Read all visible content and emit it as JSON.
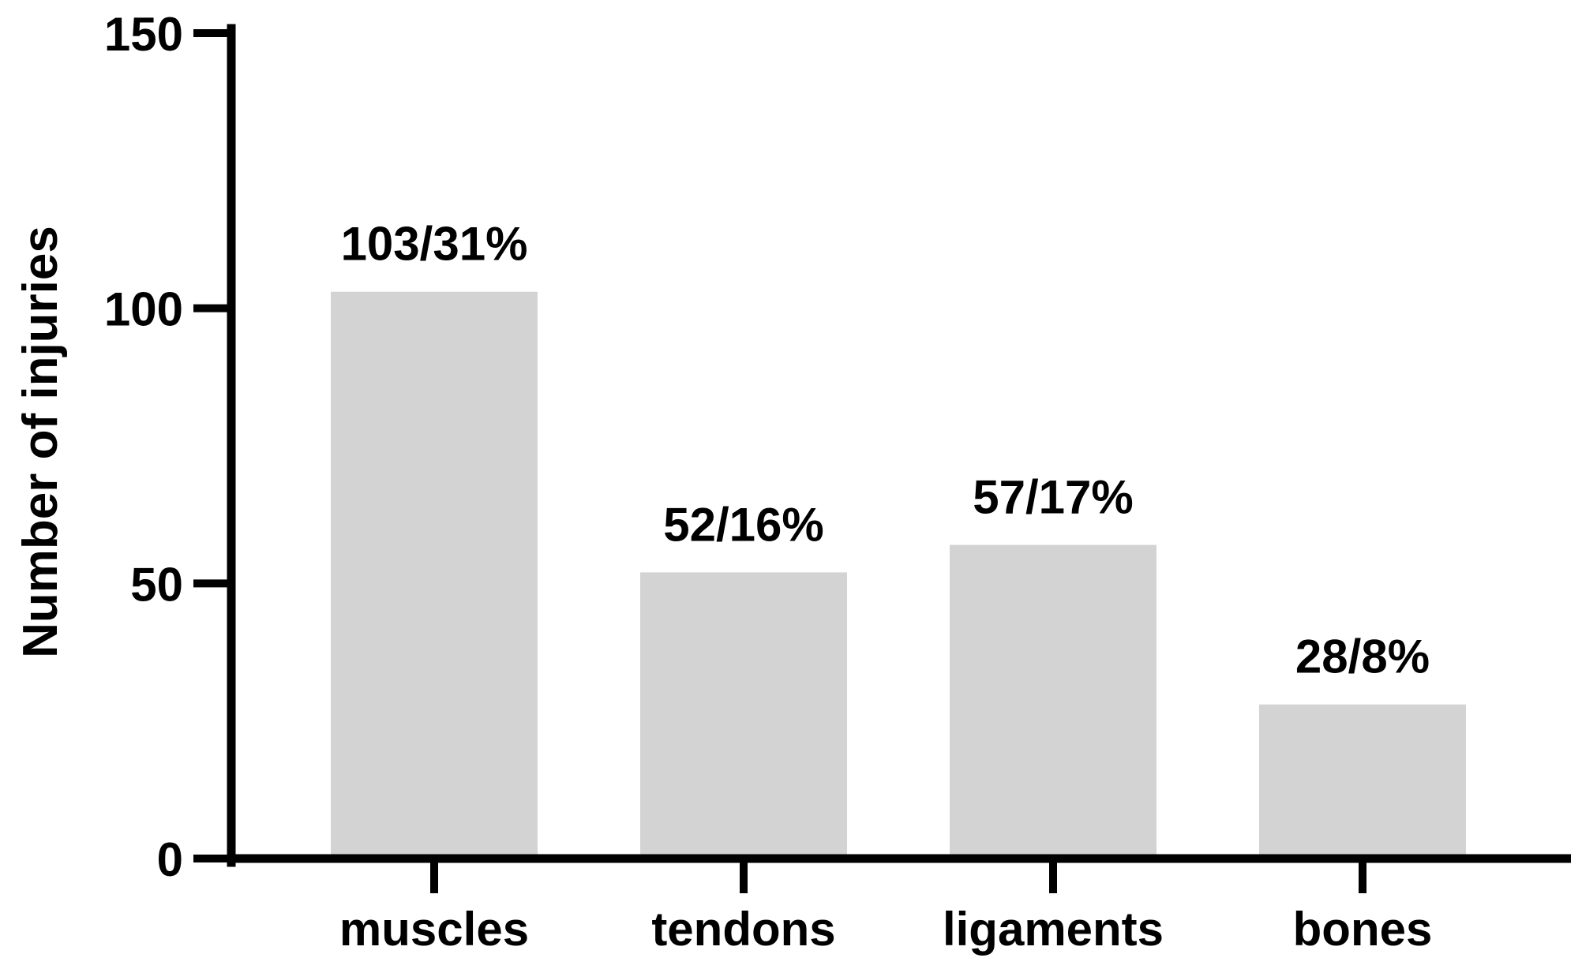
{
  "chart_data": {
    "type": "bar",
    "categories": [
      "muscles",
      "tendons",
      "ligaments",
      "bones"
    ],
    "values": [
      103,
      52,
      57,
      28
    ],
    "data_labels": [
      "103/31%",
      "52/16%",
      "57/17%",
      "28/8%"
    ],
    "title": "",
    "xlabel": "",
    "ylabel": "Number of injuries",
    "ylim": [
      0,
      150
    ],
    "yticks": [
      0,
      50,
      100,
      150
    ],
    "ytick_labels": [
      "0",
      "50",
      "100",
      "150"
    ],
    "grid": false,
    "legend": "none",
    "bar_color": "#d3d3d3",
    "axis_color": "#000000"
  }
}
